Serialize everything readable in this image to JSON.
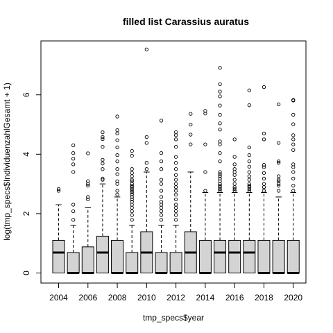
{
  "chart_data": {
    "type": "boxplot",
    "title": "filled list Carassius auratus",
    "xlabel": "tmp_specs$year",
    "ylabel": "log(tmp_specs$IndividuenzahlGesamt + 1)",
    "categories": [
      "2004",
      "2005",
      "2006",
      "2007",
      "2008",
      "2009",
      "2010",
      "2011",
      "2012",
      "2013",
      "2014",
      "2015",
      "2016",
      "2017",
      "2018",
      "2019",
      "2020"
    ],
    "x_tick_labels": [
      "2004",
      "2006",
      "2008",
      "2010",
      "2012",
      "2014",
      "2016",
      "2018",
      "2020"
    ],
    "y_ticks": [
      0,
      2,
      4,
      6
    ],
    "ylim": [
      -0.2,
      7.7
    ],
    "grid": false,
    "box_fill": "#d3d3d3",
    "boxes": [
      {
        "year": "2004",
        "q1": 0,
        "median": 0.69,
        "q3": 1.1,
        "whisker_low": 0,
        "whisker_high": 2.3,
        "outliers": [
          2.77,
          2.83
        ]
      },
      {
        "year": "2005",
        "q1": 0,
        "median": 0,
        "q3": 0.69,
        "whisker_low": 0,
        "whisker_high": 1.61,
        "outliers": [
          1.79,
          2.08,
          2.3,
          3.4,
          3.66,
          3.85,
          4.04,
          4.3
        ]
      },
      {
        "year": "2006",
        "q1": 0,
        "median": 0,
        "q3": 0.88,
        "whisker_low": 0,
        "whisker_high": 2.2,
        "outliers": [
          2.48,
          2.56,
          2.94,
          3.0,
          3.09,
          4.03
        ]
      },
      {
        "year": "2007",
        "q1": 0,
        "median": 0.69,
        "q3": 1.24,
        "whisker_low": 0,
        "whisker_high": 3.0,
        "outliers": [
          3.14,
          3.18,
          3.5,
          3.69,
          3.81,
          4.25,
          4.51,
          4.58,
          4.74
        ]
      },
      {
        "year": "2008",
        "q1": 0,
        "median": 0,
        "q3": 1.1,
        "whisker_low": 0,
        "whisker_high": 2.56,
        "outliers": [
          2.64,
          2.77,
          3.0,
          3.09,
          3.33,
          3.5,
          3.76,
          3.97,
          4.23,
          4.47,
          4.7,
          4.81,
          5.27
        ]
      },
      {
        "year": "2009",
        "q1": 0,
        "median": 0,
        "q3": 0.69,
        "whisker_low": 0,
        "whisker_high": 1.61,
        "outliers": [
          1.79,
          1.95,
          2.08,
          2.2,
          2.3,
          2.4,
          2.48,
          2.56,
          2.64,
          2.71,
          2.77,
          2.83,
          2.89,
          2.94,
          3.0,
          3.09,
          3.14,
          3.26,
          3.37,
          3.5,
          3.95,
          4.11
        ]
      },
      {
        "year": "2010",
        "q1": 0,
        "median": 0.69,
        "q3": 1.39,
        "whisker_low": 0,
        "whisker_high": 3.4,
        "outliers": [
          3.5,
          3.71,
          4.38,
          4.58,
          7.53
        ]
      },
      {
        "year": "2011",
        "q1": 0,
        "median": 0,
        "q3": 0.69,
        "whisker_low": 0,
        "whisker_high": 1.61,
        "outliers": [
          1.79,
          1.95,
          2.08,
          2.2,
          2.3,
          2.4,
          2.56,
          2.77,
          3.0,
          3.14,
          3.5,
          3.76,
          4.04,
          5.13
        ]
      },
      {
        "year": "2012",
        "q1": 0,
        "median": 0,
        "q3": 0.69,
        "whisker_low": 0,
        "whisker_high": 1.61,
        "outliers": [
          1.79,
          1.95,
          2.08,
          2.2,
          2.3,
          2.48,
          2.64,
          2.77,
          2.89,
          3.0,
          3.14,
          3.3,
          3.5,
          3.71,
          3.91,
          4.25,
          4.5,
          4.64,
          4.74
        ]
      },
      {
        "year": "2013",
        "q1": 0,
        "median": 0.69,
        "q3": 1.39,
        "whisker_low": 0,
        "whisker_high": 3.4,
        "outliers": [
          4.33,
          4.66,
          5.0,
          5.36
        ]
      },
      {
        "year": "2014",
        "q1": 0,
        "median": 0,
        "q3": 1.1,
        "whisker_low": 0,
        "whisker_high": 2.71,
        "outliers": [
          2.77,
          3.4,
          4.33,
          5.37,
          5.46
        ]
      },
      {
        "year": "2015",
        "q1": 0,
        "median": 0.69,
        "q3": 1.1,
        "whisker_low": 0,
        "whisker_high": 2.71,
        "outliers": [
          2.77,
          2.83,
          2.89,
          2.94,
          3.0,
          3.09,
          3.18,
          3.26,
          3.33,
          3.4,
          3.76,
          4.04,
          4.33,
          4.43,
          4.83,
          5.04,
          5.33,
          5.64,
          5.95,
          6.11,
          6.36,
          6.91
        ]
      },
      {
        "year": "2016",
        "q1": 0,
        "median": 0.69,
        "q3": 1.1,
        "whisker_low": 0,
        "whisker_high": 2.71,
        "outliers": [
          2.77,
          2.83,
          2.89,
          3.0,
          3.14,
          3.3,
          3.4,
          3.5,
          3.66,
          3.91,
          4.5
        ]
      },
      {
        "year": "2017",
        "q1": 0,
        "median": 0.69,
        "q3": 1.1,
        "whisker_low": 0,
        "whisker_high": 2.71,
        "outliers": [
          2.77,
          2.83,
          2.89,
          2.94,
          3.0,
          3.14,
          3.26,
          3.4,
          3.58,
          3.76,
          3.97,
          4.23,
          5.65,
          6.15
        ]
      },
      {
        "year": "2018",
        "q1": 0,
        "median": 0,
        "q3": 1.1,
        "whisker_low": 0,
        "whisker_high": 2.71,
        "outliers": [
          2.77,
          2.89,
          3.0,
          3.18,
          3.37,
          3.56,
          3.64,
          4.5,
          4.7,
          6.26
        ]
      },
      {
        "year": "2019",
        "q1": 0,
        "median": 0,
        "q3": 1.1,
        "whisker_low": 0,
        "whisker_high": 2.56,
        "outliers": [
          2.77,
          2.94,
          3.0,
          3.09,
          3.14,
          3.26,
          3.71,
          3.76,
          4.38,
          5.68
        ]
      },
      {
        "year": "2020",
        "q1": 0,
        "median": 0,
        "q3": 1.1,
        "whisker_low": 0,
        "whisker_high": 2.71,
        "outliers": [
          2.77,
          2.94,
          3.18,
          3.4,
          3.56,
          3.66,
          4.14,
          4.33,
          4.5,
          4.64,
          5.01,
          5.33,
          5.81,
          5.83
        ]
      }
    ]
  }
}
